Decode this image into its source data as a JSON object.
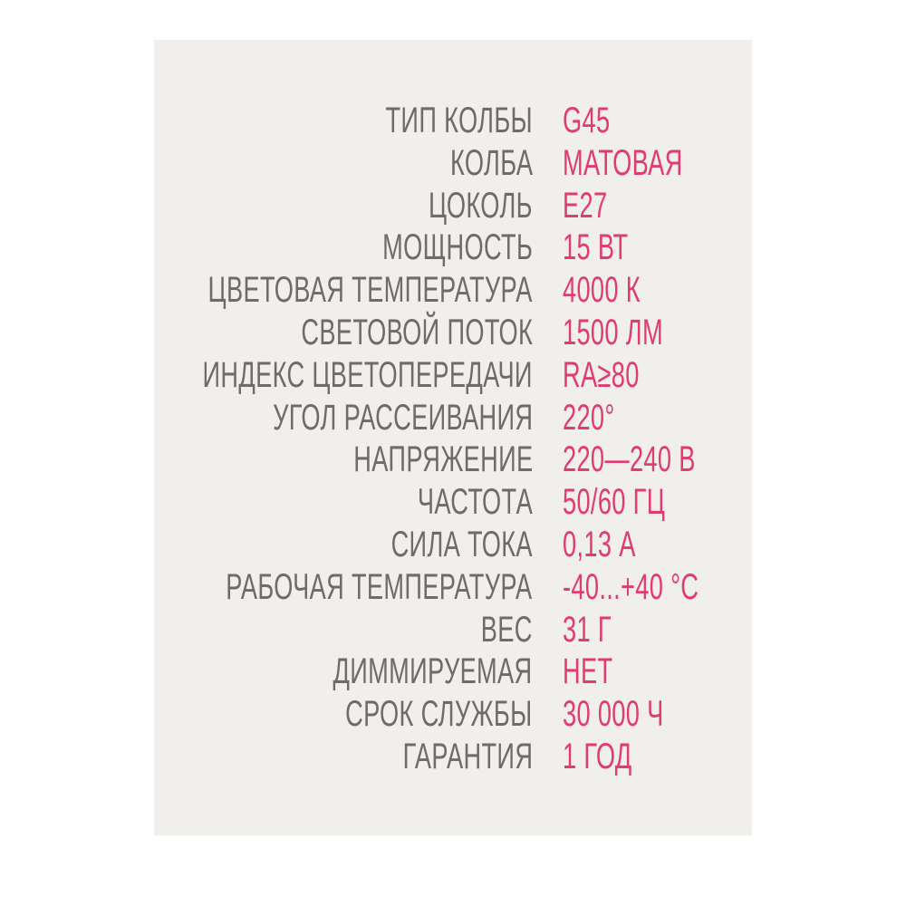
{
  "colors": {
    "label": "#6e6b69",
    "value": "#e03c6e",
    "card": "#f1efeb"
  },
  "specs": [
    {
      "label": "ТИП КОЛБЫ",
      "value": "G45"
    },
    {
      "label": "КОЛБА",
      "value": "МАТОВАЯ"
    },
    {
      "label": "ЦОКОЛЬ",
      "value": "E27"
    },
    {
      "label": "МОЩНОСТЬ",
      "value": "15 ВТ"
    },
    {
      "label": "ЦВЕТОВАЯ ТЕМПЕРАТУРА",
      "value": "4000 К"
    },
    {
      "label": "СВЕТОВОЙ ПОТОК",
      "value": "1500 ЛМ"
    },
    {
      "label": "ИНДЕКС ЦВЕТОПЕРЕДАЧИ",
      "value": "RA≥80"
    },
    {
      "label": "УГОЛ РАССЕИВАНИЯ",
      "value": "220°"
    },
    {
      "label": "НАПРЯЖЕНИЕ",
      "value": "220—240 В"
    },
    {
      "label": "ЧАСТОТА",
      "value": "50/60 ГЦ"
    },
    {
      "label": "СИЛА ТОКА",
      "value": "0,13 А"
    },
    {
      "label": "РАБОЧАЯ ТЕМПЕРАТУРА",
      "value": "-40...+40 °С"
    },
    {
      "label": "ВЕС",
      "value": "31 Г"
    },
    {
      "label": "ДИММИРУЕМАЯ",
      "value": "НЕТ"
    },
    {
      "label": "СРОК СЛУЖБЫ",
      "value": "30 000 Ч"
    },
    {
      "label": "ГАРАНТИЯ",
      "value": "1 ГОД"
    }
  ]
}
